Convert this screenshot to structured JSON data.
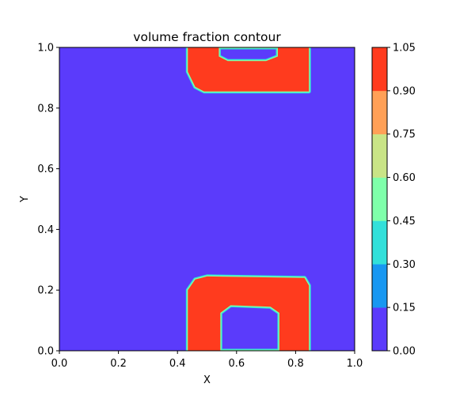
{
  "chart_data": {
    "type": "contour",
    "title": "volume fraction contour",
    "xlabel": "X",
    "ylabel": "Y",
    "xlim": [
      0.0,
      1.0
    ],
    "ylim": [
      0.0,
      1.0
    ],
    "xticks": [
      "0.0",
      "0.2",
      "0.4",
      "0.6",
      "0.8",
      "1.0"
    ],
    "yticks": [
      "0.0",
      "0.2",
      "0.4",
      "0.6",
      "0.8",
      "1.0"
    ],
    "grid": false,
    "colorbar": {
      "levels": [
        0.0,
        0.15,
        0.3,
        0.45,
        0.6,
        0.75,
        0.9,
        1.05
      ],
      "tick_labels": [
        "0.00",
        "0.15",
        "0.30",
        "0.45",
        "0.60",
        "0.75",
        "0.90",
        "1.05"
      ],
      "colors": [
        "#5b3bfb",
        "#1897f1",
        "#32e0da",
        "#7fffaa",
        "#c9e486",
        "#ffa057",
        "#ff3b1e"
      ]
    },
    "background_value": 0.0,
    "regions": [
      {
        "name": "upper region",
        "value": 1.0,
        "outer_outline": [
          [
            0.435,
            1.0
          ],
          [
            0.845,
            1.0
          ],
          [
            0.845,
            0.855
          ],
          [
            0.49,
            0.855
          ],
          [
            0.46,
            0.87
          ],
          [
            0.435,
            0.92
          ]
        ],
        "inner_hole_outline": [
          [
            0.54,
            1.0
          ],
          [
            0.74,
            1.0
          ],
          [
            0.74,
            0.97
          ],
          [
            0.7,
            0.955
          ],
          [
            0.57,
            0.955
          ],
          [
            0.54,
            0.97
          ]
        ]
      },
      {
        "name": "lower region",
        "value": 1.0,
        "outer_outline": [
          [
            0.435,
            0.0
          ],
          [
            0.845,
            0.0
          ],
          [
            0.845,
            0.215
          ],
          [
            0.83,
            0.24
          ],
          [
            0.5,
            0.245
          ],
          [
            0.46,
            0.235
          ],
          [
            0.435,
            0.2
          ]
        ],
        "inner_hole_outline": [
          [
            0.545,
            0.0
          ],
          [
            0.745,
            0.0
          ],
          [
            0.745,
            0.125
          ],
          [
            0.715,
            0.145
          ],
          [
            0.58,
            0.15
          ],
          [
            0.545,
            0.125
          ]
        ]
      }
    ]
  }
}
